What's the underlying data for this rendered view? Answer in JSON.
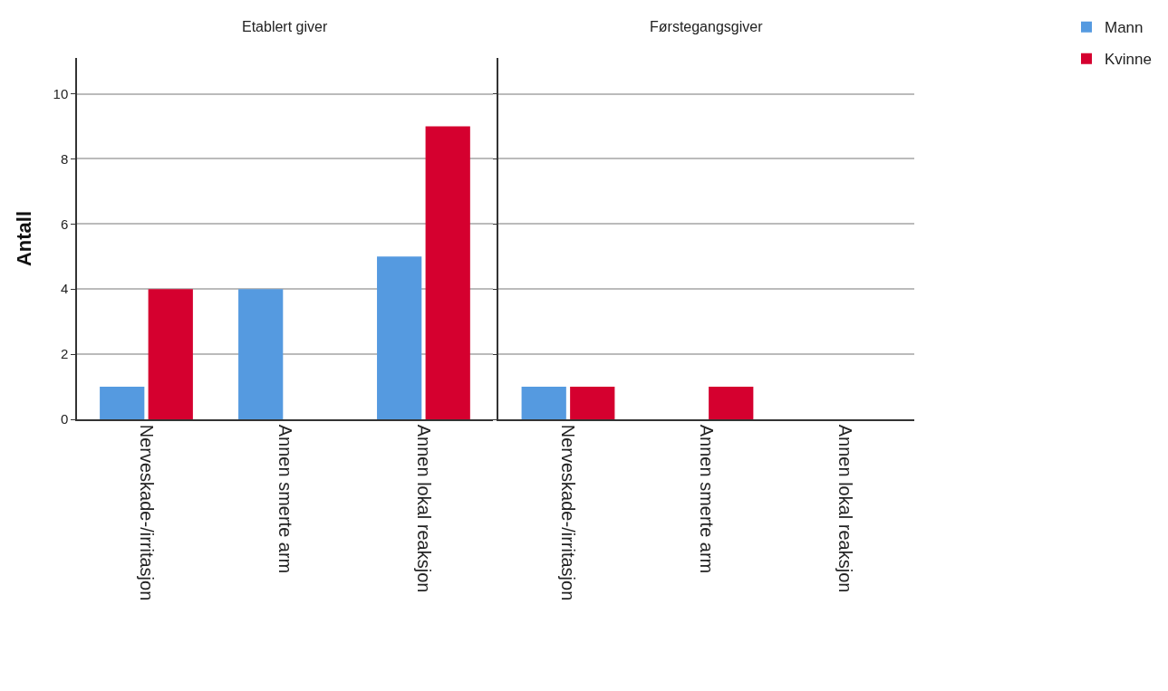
{
  "chart_data": [
    {
      "type": "bar",
      "title": "Etablert giver",
      "ylabel": "Antall",
      "categories": [
        "Nerveskade-/irritasjon",
        "Annen smerte arm",
        "Annen lokal reaksjon"
      ],
      "series": [
        {
          "name": "Mann",
          "color": "#559ae0",
          "values": [
            1,
            4,
            5
          ]
        },
        {
          "name": "Kvinne",
          "color": "#d5002f",
          "values": [
            4,
            0,
            9
          ]
        }
      ],
      "ylim": [
        0,
        11.1
      ],
      "yticks": [
        0,
        2,
        4,
        6,
        8,
        10
      ],
      "grid": "y",
      "legend": "top right"
    },
    {
      "type": "bar",
      "title": "Førstegangsgiver",
      "categories": [
        "Nerveskade-/irritasjon",
        "Annen smerte arm",
        "Annen lokal reaksjon"
      ],
      "series": [
        {
          "color": "#559ae0",
          "values": [
            1,
            0,
            0
          ]
        },
        {
          "color": "#d5002f",
          "values": [
            1,
            1,
            0
          ]
        }
      ],
      "ylim": [
        0,
        11.1
      ],
      "yticks": [
        0,
        2,
        4,
        6,
        8,
        10
      ],
      "grid": "y",
      "legend": "top right",
      "tick_labels": "x"
    }
  ]
}
